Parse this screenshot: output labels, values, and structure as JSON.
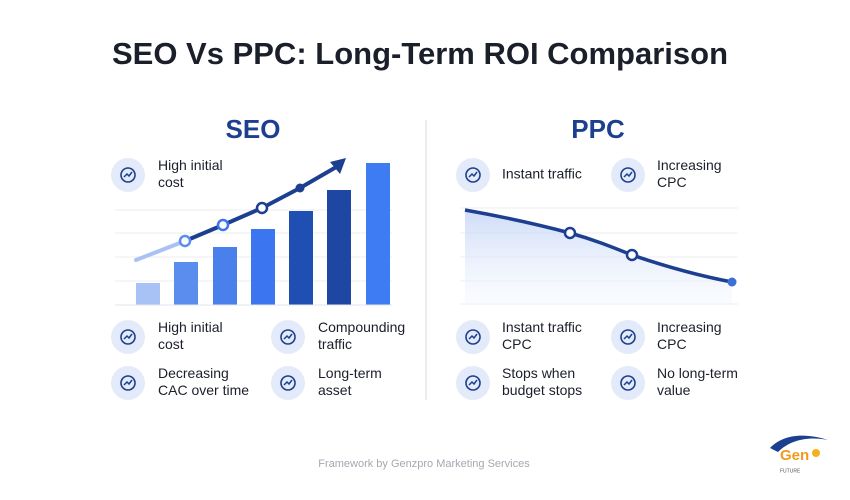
{
  "header": {
    "title": "SEO Vs PPC: Long-Term ROI Comparison"
  },
  "seo": {
    "heading": "SEO",
    "callout": [
      "High initial",
      "cost"
    ],
    "items": [
      [
        "High initial",
        "cost"
      ],
      [
        "Compounding",
        "traffic"
      ],
      [
        "Decreasing",
        "CAC over time"
      ],
      [
        "Long-term",
        "asset"
      ]
    ]
  },
  "ppc": {
    "heading": "PPC",
    "callouts": [
      [
        "Instant traffic"
      ],
      [
        "Increasing",
        "CPC"
      ]
    ],
    "items": [
      [
        "Instant traffic",
        "CPC"
      ],
      [
        "Increasing",
        "CPC"
      ],
      [
        "Stops when",
        "budget stops"
      ],
      [
        "No long-term",
        "value"
      ]
    ]
  },
  "footer": "Framework by Genzpro Marketing Services",
  "logo": {
    "name": "Gen",
    "tagline": "FUTURE"
  }
}
